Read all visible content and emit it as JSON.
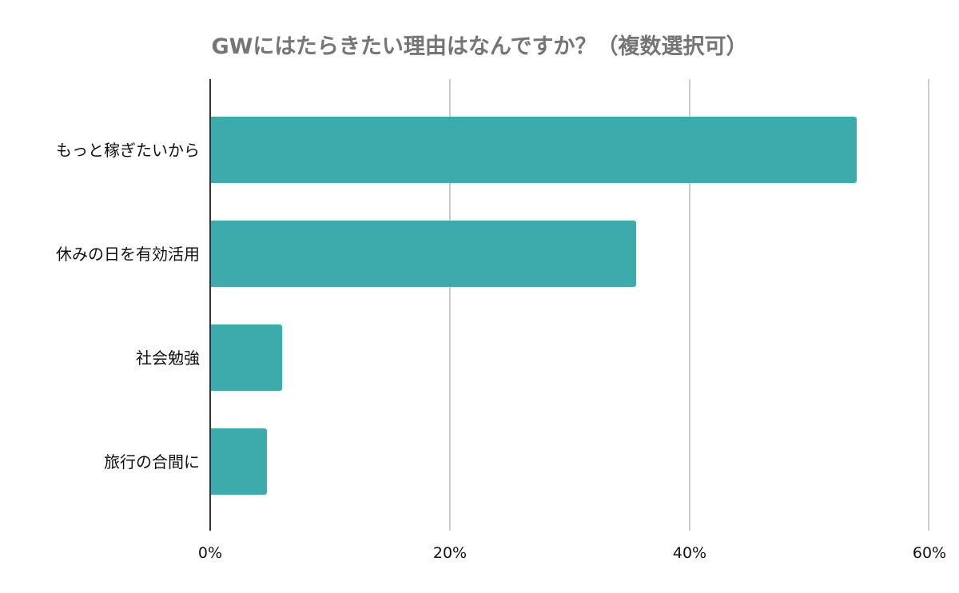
{
  "chart_data": {
    "type": "bar",
    "orientation": "horizontal",
    "title": "GWにはたらきたい理由はなんですか？（複数選択可）",
    "categories": [
      "もっと稼ぎたいから",
      "休みの日を有効活用",
      "社会勉強",
      "旅行の合間に"
    ],
    "values": [
      53.9,
      35.5,
      6.0,
      4.7
    ],
    "unit": "%",
    "xlabel": "",
    "ylabel": "",
    "xlim": [
      0,
      60
    ],
    "xticks": [
      "0%",
      "20%",
      "40%",
      "60%"
    ],
    "grid": true,
    "legend": null,
    "bar_color": "#3DABAB"
  },
  "colors": {
    "bar": "#3DABAB",
    "title": "#757575",
    "gridline": "#cccccc",
    "axis": "#333333"
  }
}
